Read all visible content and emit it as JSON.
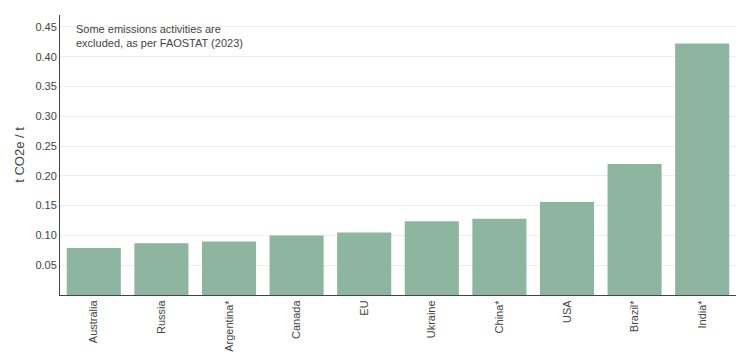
{
  "chart_data": {
    "type": "bar",
    "categories": [
      "Australia",
      "Russia",
      "Argentina*",
      "Canada",
      "EU",
      "Ukraine",
      "China*",
      "USA",
      "Brazil*",
      "India*"
    ],
    "values": [
      0.079,
      0.087,
      0.09,
      0.1,
      0.105,
      0.124,
      0.128,
      0.156,
      0.22,
      0.422
    ],
    "color": "#8db5a0",
    "ylabel": "t CO2e / t",
    "ylim": [
      0,
      0.47
    ],
    "yticks": [
      0.05,
      {
        "value": 0.1,
        "label": "0.10"
      },
      0.15,
      {
        "value": 0.2,
        "label": "0.20"
      },
      0.25,
      {
        "value": 0.3,
        "label": "0.30"
      },
      0.35,
      {
        "value": 0.4,
        "label": "0.40"
      },
      0.45
    ],
    "annotation": "Some emissions activities are\nexcluded, as per FAOSTAT (2023)",
    "grid": true
  }
}
